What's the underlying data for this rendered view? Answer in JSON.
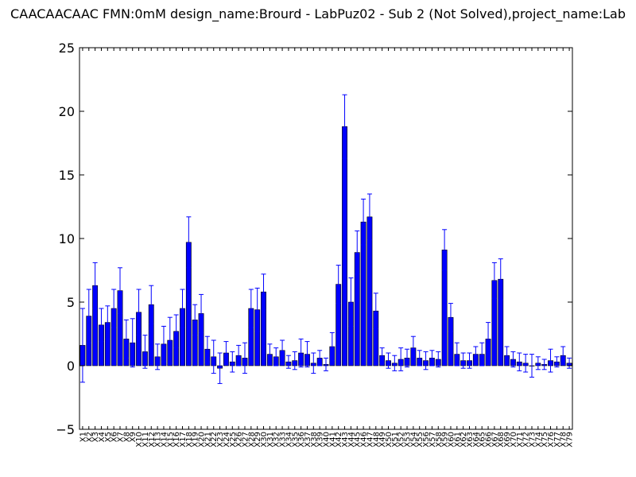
{
  "chart_data": {
    "type": "bar",
    "title": "CAACAACAAC  FMN:0mM  design_name:Brourd - LabPuz02 - Sub 2 (Not Solved),project_name:Lab",
    "xlabel": "",
    "ylabel": "",
    "ylim": [
      -5,
      25
    ],
    "yticks": [
      -5,
      0,
      5,
      10,
      15,
      20,
      25
    ],
    "grid": false,
    "legend": "none",
    "bar_color": "#0000ff",
    "error_color": "#0000ff",
    "categories": [
      "X1",
      "X2",
      "X3",
      "X4",
      "X5",
      "X6",
      "X7",
      "X8",
      "X9",
      "X10",
      "X11",
      "X12",
      "X13",
      "X14",
      "X15",
      "X16",
      "X17",
      "X18",
      "X19",
      "X20",
      "X21",
      "X22",
      "X23",
      "X24",
      "X25",
      "X26",
      "X27",
      "X28",
      "X29",
      "X30",
      "X31",
      "X32",
      "X33",
      "X34",
      "X35",
      "X36",
      "X37",
      "X38",
      "X39",
      "X40",
      "X41",
      "X42",
      "X43",
      "X44",
      "X45",
      "X46",
      "X47",
      "X48",
      "X49",
      "X50",
      "X51",
      "X52",
      "X53",
      "X54",
      "X55",
      "X56",
      "X57",
      "X58",
      "X59",
      "X60",
      "X61",
      "X62",
      "X63",
      "X64",
      "X65",
      "X66",
      "X67",
      "X68",
      "X69",
      "X70",
      "X71",
      "X72",
      "X73",
      "X74",
      "X75",
      "X76",
      "X77",
      "X78",
      "X79"
    ],
    "values": [
      1.6,
      3.9,
      6.3,
      3.2,
      3.4,
      4.5,
      5.9,
      2.1,
      1.8,
      4.2,
      1.1,
      4.8,
      0.7,
      1.7,
      2.0,
      2.7,
      4.5,
      9.7,
      3.6,
      4.1,
      1.3,
      0.7,
      -0.2,
      1.0,
      0.3,
      0.8,
      0.6,
      4.5,
      4.4,
      5.8,
      0.9,
      0.7,
      1.2,
      0.3,
      0.4,
      1.0,
      0.9,
      0.2,
      0.6,
      0.1,
      1.5,
      6.4,
      18.8,
      5.0,
      8.9,
      11.3,
      11.7,
      4.3,
      0.8,
      0.4,
      0.2,
      0.5,
      0.6,
      1.4,
      0.6,
      0.4,
      0.6,
      0.5,
      9.1,
      3.8,
      0.9,
      0.4,
      0.4,
      0.9,
      0.9,
      2.1,
      6.7,
      6.8,
      0.8,
      0.5,
      0.3,
      0.2,
      0.0,
      0.2,
      0.1,
      0.4,
      0.3,
      0.8,
      0.2
    ],
    "errors": [
      2.9,
      2.1,
      1.8,
      1.3,
      1.3,
      1.5,
      1.8,
      1.5,
      1.9,
      1.8,
      1.3,
      1.5,
      1.0,
      1.4,
      1.8,
      1.3,
      1.5,
      2.0,
      1.2,
      1.5,
      1.0,
      1.3,
      1.2,
      0.9,
      0.8,
      0.8,
      1.2,
      1.5,
      1.7,
      1.4,
      0.8,
      0.7,
      0.8,
      0.5,
      0.7,
      1.1,
      1.0,
      0.8,
      0.6,
      0.5,
      1.1,
      1.5,
      2.5,
      1.9,
      1.7,
      1.8,
      1.8,
      1.4,
      0.6,
      0.6,
      0.6,
      0.9,
      0.7,
      0.9,
      0.6,
      0.7,
      0.6,
      0.6,
      1.6,
      1.1,
      0.9,
      0.6,
      0.6,
      0.6,
      0.9,
      1.3,
      1.4,
      1.6,
      0.7,
      0.6,
      0.7,
      0.7,
      0.9,
      0.5,
      0.4,
      0.9,
      0.4,
      0.7,
      0.4
    ]
  }
}
